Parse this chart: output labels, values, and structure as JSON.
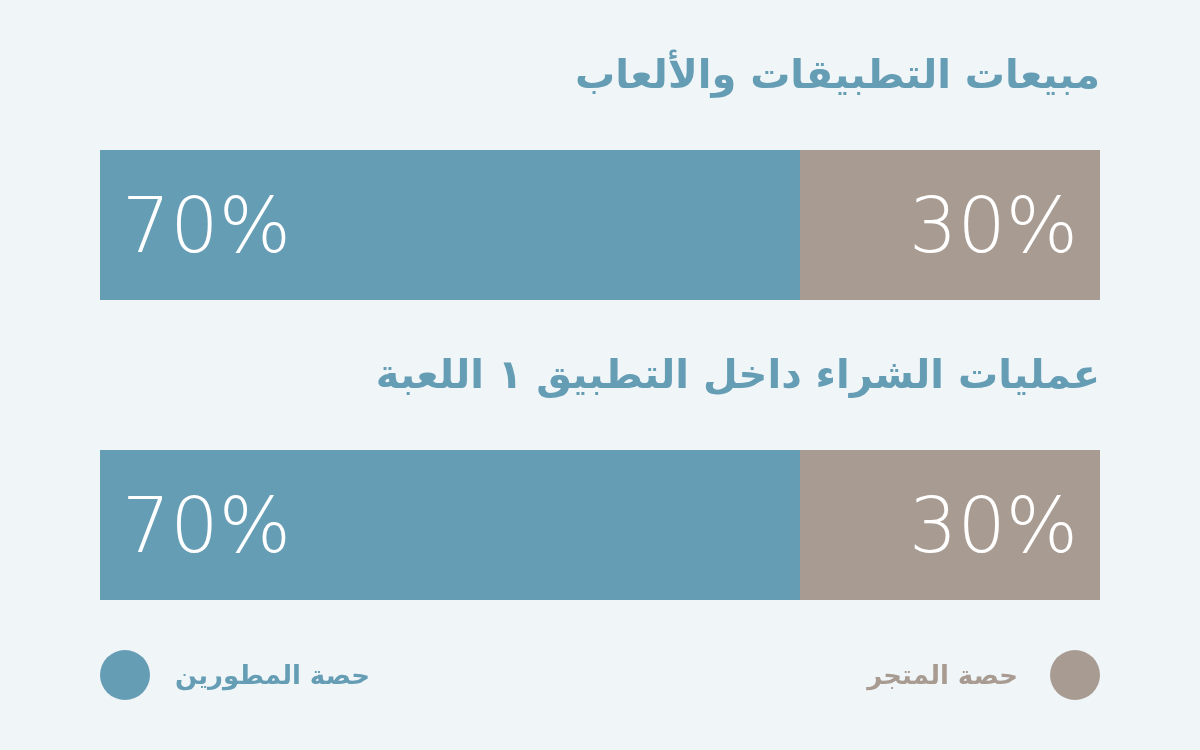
{
  "chart_data": [
    {
      "type": "bar",
      "title": "مبيعات التطبيقات والألعاب",
      "orientation": "horizontal",
      "stacked": true,
      "categories": [
        null
      ],
      "xlim": [
        0,
        100
      ],
      "series": [
        {
          "color": "#659db5",
          "values": [
            70
          ],
          "value_labels": [
            "70%"
          ]
        },
        {
          "color": "#a89b92",
          "values": [
            30
          ],
          "value_labels": [
            "30%"
          ]
        }
      ]
    },
    {
      "type": "bar",
      "title": "عمليات الشراء داخل التطبيق ١ اللعبة",
      "orientation": "horizontal",
      "stacked": true,
      "categories": [
        null
      ],
      "xlim": [
        0,
        100
      ],
      "legend": "bottom",
      "series": [
        {
          "name": "حصة المطورين",
          "color": "#659db5",
          "values": [
            70
          ],
          "value_labels": [
            "70%"
          ]
        },
        {
          "name": "حصة المتجر",
          "color": "#a89b92",
          "values": [
            30
          ],
          "value_labels": [
            "30%"
          ]
        }
      ]
    }
  ]
}
